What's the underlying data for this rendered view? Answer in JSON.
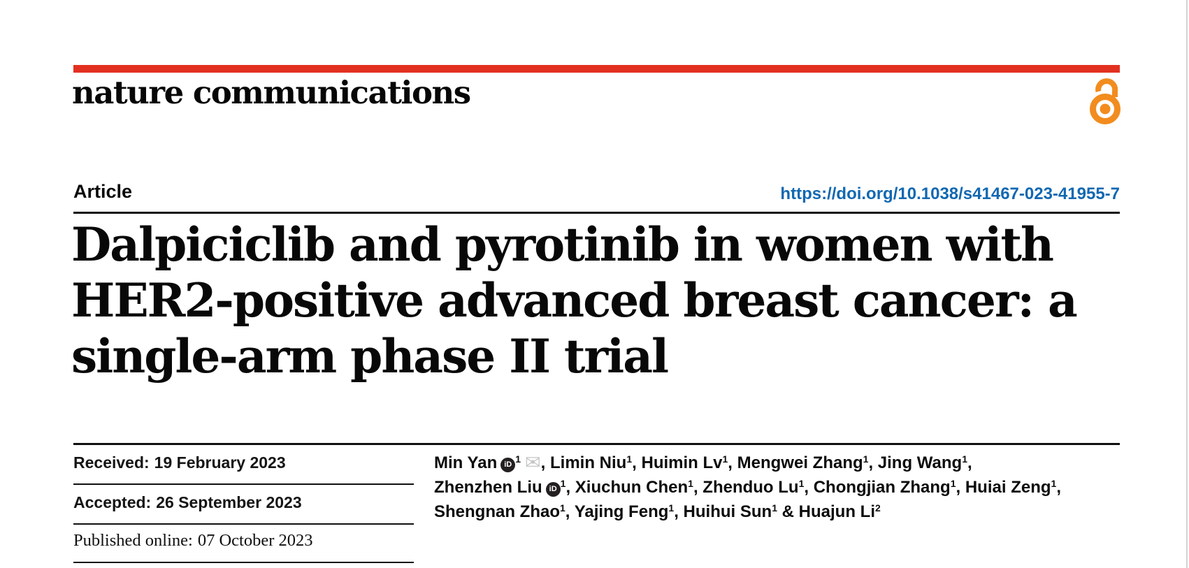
{
  "masthead": {
    "journal": "nature communications",
    "bar_color": "#e23120",
    "open_access_color": "#f28c1e",
    "open_access_icon": "open-access-padlock"
  },
  "article_header": {
    "type_label": "Article",
    "doi": "https://doi.org/10.1038/s41467-023-41955-7",
    "doi_color": "#1268b1"
  },
  "title": {
    "lines": [
      "Dalpiciclib and pyrotinib in women with",
      "HER2-positive advanced breast cancer: a",
      "single-arm phase II trial"
    ]
  },
  "dates": {
    "rows": [
      {
        "label": "Received:",
        "value": "19 February 2023",
        "style": "sans"
      },
      {
        "label": "Accepted:",
        "value": "26 September 2023",
        "style": "sans"
      },
      {
        "label": "Published online:",
        "value": "07 October 2023",
        "style": "serif"
      }
    ]
  },
  "authors": {
    "orcid_glyph": "iD",
    "email_glyph": "✉",
    "lines": [
      [
        {
          "t": "name",
          "v": "Min Yan"
        },
        {
          "t": "orcid"
        },
        {
          "t": "sup",
          "v": "1"
        },
        {
          "t": "mail"
        },
        {
          "t": "text",
          "v": ", "
        },
        {
          "t": "name",
          "v": "Limin Niu"
        },
        {
          "t": "sup",
          "v": "1"
        },
        {
          "t": "text",
          "v": ", "
        },
        {
          "t": "name",
          "v": "Huimin Lv"
        },
        {
          "t": "sup",
          "v": "1"
        },
        {
          "t": "text",
          "v": ", "
        },
        {
          "t": "name",
          "v": "Mengwei Zhang"
        },
        {
          "t": "sup",
          "v": "1"
        },
        {
          "t": "text",
          "v": ", "
        },
        {
          "t": "name",
          "v": "Jing Wang"
        },
        {
          "t": "sup",
          "v": "1"
        },
        {
          "t": "text",
          "v": ","
        }
      ],
      [
        {
          "t": "name",
          "v": "Zhenzhen Liu"
        },
        {
          "t": "orcid"
        },
        {
          "t": "sup",
          "v": "1"
        },
        {
          "t": "text",
          "v": ", "
        },
        {
          "t": "name",
          "v": "Xiuchun Chen"
        },
        {
          "t": "sup",
          "v": "1"
        },
        {
          "t": "text",
          "v": ", "
        },
        {
          "t": "name",
          "v": "Zhenduo Lu"
        },
        {
          "t": "sup",
          "v": "1"
        },
        {
          "t": "text",
          "v": ", "
        },
        {
          "t": "name",
          "v": "Chongjian Zhang"
        },
        {
          "t": "sup",
          "v": "1"
        },
        {
          "t": "text",
          "v": ", "
        },
        {
          "t": "name",
          "v": "Huiai Zeng"
        },
        {
          "t": "sup",
          "v": "1"
        },
        {
          "t": "text",
          "v": ","
        }
      ],
      [
        {
          "t": "name",
          "v": "Shengnan Zhao"
        },
        {
          "t": "sup",
          "v": "1"
        },
        {
          "t": "text",
          "v": ", "
        },
        {
          "t": "name",
          "v": "Yajing Feng"
        },
        {
          "t": "sup",
          "v": "1"
        },
        {
          "t": "text",
          "v": ", "
        },
        {
          "t": "name",
          "v": "Huihui Sun"
        },
        {
          "t": "sup",
          "v": "1"
        },
        {
          "t": "text",
          "v": " & "
        },
        {
          "t": "name",
          "v": "Huajun Li"
        },
        {
          "t": "sup",
          "v": "2"
        }
      ]
    ]
  }
}
